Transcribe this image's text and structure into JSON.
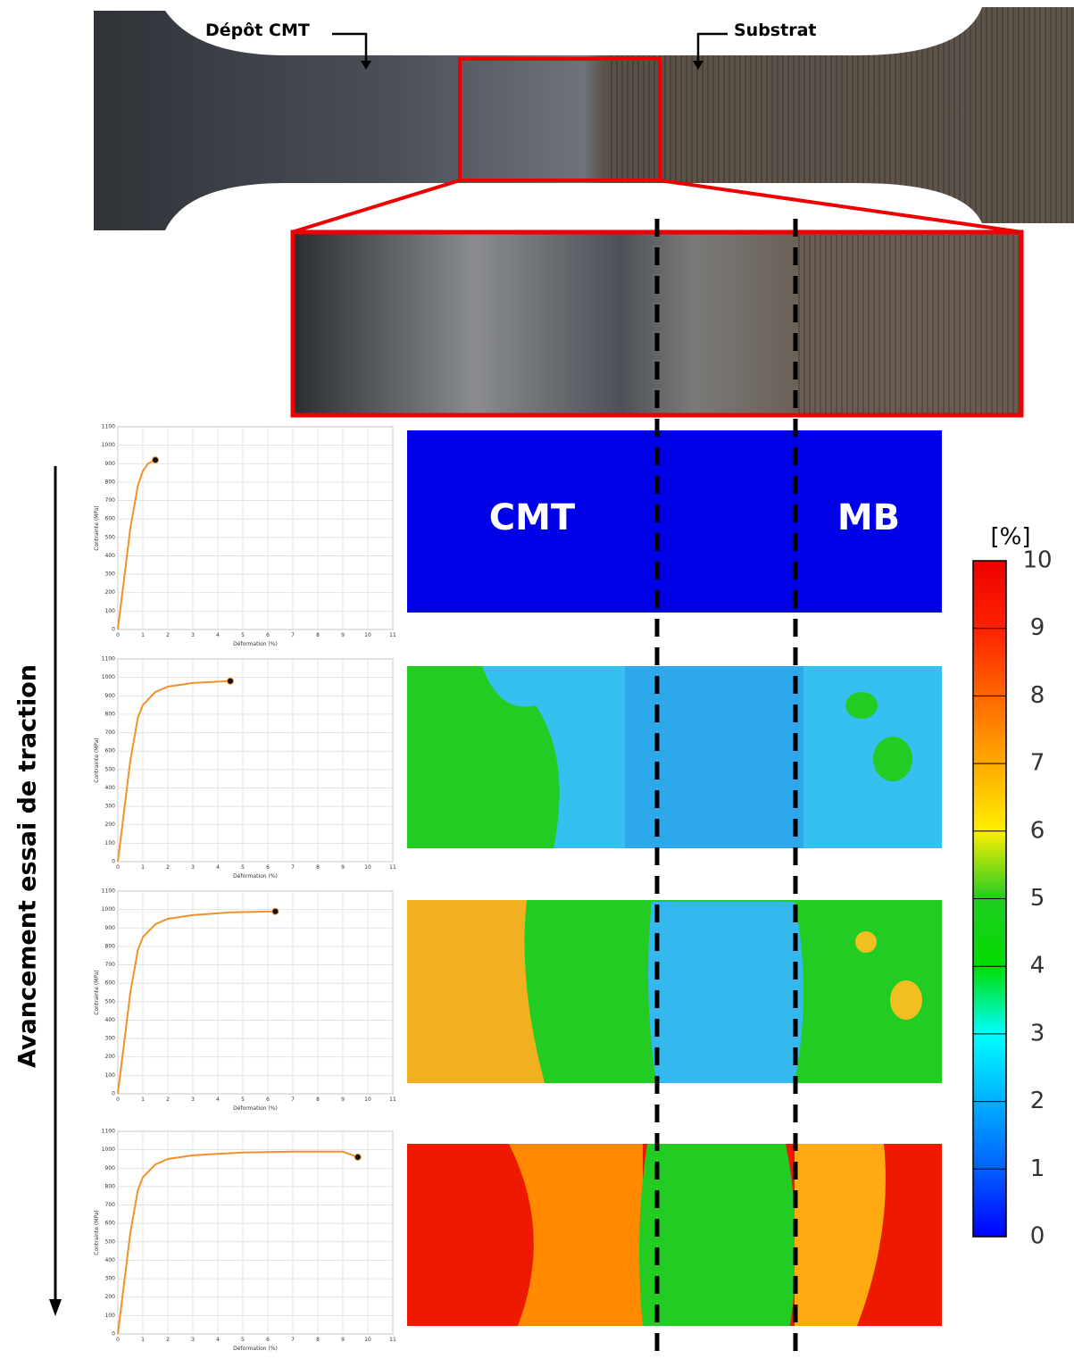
{
  "annotations": {
    "deposit": "Dépôt CMT",
    "substrate": "Substrat",
    "progress": "Avancement essai de traction"
  },
  "maps": {
    "labels": [
      "CMT",
      "MB"
    ]
  },
  "colorbar": {
    "unit": "[%]",
    "lim": [
      0,
      10
    ],
    "ticks": [
      0,
      1,
      2,
      3,
      4,
      5,
      6,
      7,
      8,
      9,
      10
    ],
    "colors": [
      "#0000ff",
      "#0060ff",
      "#00b0ff",
      "#00ffff",
      "#00dd00",
      "#22cc22",
      "#ffee00",
      "#ffaa00",
      "#ff6600",
      "#ff2200",
      "#ee0000"
    ]
  },
  "chart_data": [
    {
      "type": "line",
      "xlabel": "Déformation (%)",
      "ylabel": "Contrainte (MPa)",
      "xlim": [
        0,
        11
      ],
      "ylim": [
        0,
        1100
      ],
      "xticks": [
        0,
        1,
        2,
        3,
        4,
        5,
        6,
        7,
        8,
        9,
        10,
        11
      ],
      "yticks": [
        0,
        100,
        200,
        300,
        400,
        500,
        600,
        700,
        800,
        900,
        1000,
        1100
      ],
      "grid": true,
      "series": [
        {
          "color": "#f0922b",
          "x": [
            0,
            0.5,
            0.8,
            1.0,
            1.2,
            1.5
          ],
          "values": [
            0,
            550,
            780,
            860,
            900,
            920
          ]
        }
      ]
    },
    {
      "type": "line",
      "xlabel": "Déformation (%)",
      "ylabel": "Contrainte (MPa)",
      "xlim": [
        0,
        11
      ],
      "ylim": [
        0,
        1100
      ],
      "xticks": [
        0,
        1,
        2,
        3,
        4,
        5,
        6,
        7,
        8,
        9,
        10,
        11
      ],
      "yticks": [
        0,
        100,
        200,
        300,
        400,
        500,
        600,
        700,
        800,
        900,
        1000,
        1100
      ],
      "grid": true,
      "series": [
        {
          "color": "#f0922b",
          "x": [
            0,
            0.5,
            0.8,
            1.0,
            1.5,
            2.0,
            3.0,
            4.5
          ],
          "values": [
            0,
            550,
            780,
            850,
            920,
            950,
            970,
            980
          ]
        }
      ]
    },
    {
      "type": "line",
      "xlabel": "Déformation (%)",
      "ylabel": "Contrainte (MPa)",
      "xlim": [
        0,
        11
      ],
      "ylim": [
        0,
        1100
      ],
      "xticks": [
        0,
        1,
        2,
        3,
        4,
        5,
        6,
        7,
        8,
        9,
        10,
        11
      ],
      "yticks": [
        0,
        100,
        200,
        300,
        400,
        500,
        600,
        700,
        800,
        900,
        1000,
        1100
      ],
      "grid": true,
      "series": [
        {
          "color": "#f0922b",
          "x": [
            0,
            0.5,
            0.8,
            1.0,
            1.5,
            2.0,
            3.0,
            4.5,
            6.3
          ],
          "values": [
            0,
            550,
            780,
            850,
            920,
            950,
            970,
            985,
            990
          ]
        }
      ]
    },
    {
      "type": "line",
      "xlabel": "Déformation (%)",
      "ylabel": "Contrainte (MPa)",
      "xlim": [
        0,
        11
      ],
      "ylim": [
        0,
        1100
      ],
      "xticks": [
        0,
        1,
        2,
        3,
        4,
        5,
        6,
        7,
        8,
        9,
        10,
        11
      ],
      "yticks": [
        0,
        100,
        200,
        300,
        400,
        500,
        600,
        700,
        800,
        900,
        1000,
        1100
      ],
      "grid": true,
      "series": [
        {
          "color": "#f0922b",
          "x": [
            0,
            0.5,
            0.8,
            1.0,
            1.5,
            2.0,
            3.0,
            5.0,
            7.0,
            9.0,
            9.6
          ],
          "values": [
            0,
            550,
            780,
            850,
            920,
            950,
            970,
            985,
            990,
            990,
            960
          ]
        }
      ]
    }
  ]
}
